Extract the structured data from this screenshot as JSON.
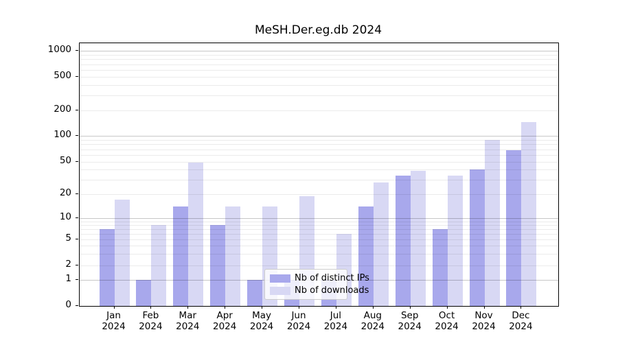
{
  "title": "MeSH.Der.eg.db 2024",
  "legend": {
    "items": [
      {
        "label": "Nb of distinct IPs",
        "color": "#a8a8ec"
      },
      {
        "label": "Nb of downloads",
        "color": "#d8d8f4"
      }
    ]
  },
  "colors": {
    "bar_distinct_ips": "#a8a8ec",
    "bar_downloads": "#d8d8f4",
    "spine": "#000000",
    "grid_major": "#c6c6c6",
    "grid_minor": "#ebebeb",
    "legend_background": "rgba(255,255,255,0.8)",
    "legend_border": "#cccccc"
  },
  "chart_data": {
    "type": "bar",
    "title": "MeSH.Der.eg.db 2024",
    "categories": [
      "Jan 2024",
      "Feb 2024",
      "Mar 2024",
      "Apr 2024",
      "May 2024",
      "Jun 2024",
      "Jul 2024",
      "Aug 2024",
      "Sep 2024",
      "Oct 2024",
      "Nov 2024",
      "Dec 2024"
    ],
    "series": [
      {
        "name": "Nb of distinct IPs",
        "values": [
          7,
          1,
          14,
          8,
          1,
          1,
          1,
          14,
          34,
          7,
          40,
          68
        ]
      },
      {
        "name": "Nb of downloads",
        "values": [
          17,
          8,
          49,
          14,
          14,
          19,
          6,
          28,
          39,
          34,
          90,
          145
        ]
      }
    ],
    "xlabel": "",
    "ylabel": "",
    "y_scale": "log-like with zero baseline",
    "y_ticks": [
      0,
      1,
      2,
      5,
      10,
      20,
      50,
      100,
      200,
      500,
      1000
    ],
    "ylim": [
      0,
      1400
    ],
    "grid": "horizontal, major at powers of 10, minor log subdivisions",
    "legend_position": "inside bottom-center"
  }
}
